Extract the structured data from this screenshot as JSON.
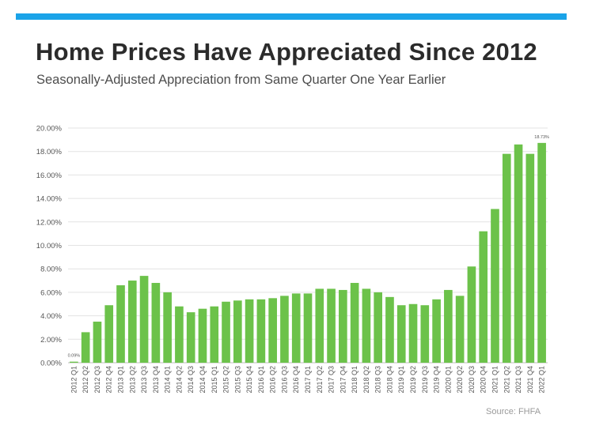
{
  "header": {
    "title": "Home Prices Have Appreciated Since 2012",
    "subtitle": "Seasonally-Adjusted Appreciation from Same Quarter One Year Earlier",
    "accent_color": "#1aa3e8"
  },
  "footer": {
    "source": "Source: FHFA"
  },
  "chart_data": {
    "type": "bar",
    "title": "",
    "xlabel": "",
    "ylabel": "",
    "ylim": [
      0,
      20
    ],
    "y_ticks": [
      "0.00%",
      "2.00%",
      "4.00%",
      "6.00%",
      "8.00%",
      "10.00%",
      "12.00%",
      "14.00%",
      "16.00%",
      "18.00%",
      "20.00%"
    ],
    "grid": true,
    "bar_color": "#6cc24a",
    "categories": [
      "2012 Q1",
      "2012 Q2",
      "2012 Q3",
      "2012 Q4",
      "2013 Q1",
      "2013 Q2",
      "2013 Q3",
      "2013 Q4",
      "2014 Q1",
      "2014 Q2",
      "2014 Q3",
      "2014 Q4",
      "2015 Q1",
      "2015 Q2",
      "2015 Q3",
      "2015 Q4",
      "2016 Q1",
      "2016 Q2",
      "2016 Q3",
      "2016 Q4",
      "2017 Q1",
      "2017 Q2",
      "2017 Q3",
      "2017 Q4",
      "2018 Q1",
      "2018 Q2",
      "2018 Q3",
      "2018 Q4",
      "2019 Q1",
      "2019 Q2",
      "2019 Q3",
      "2019 Q4",
      "2020 Q1",
      "2020 Q2",
      "2020 Q3",
      "2020 Q4",
      "2021 Q1",
      "2021 Q2",
      "2021 Q3",
      "2021 Q4",
      "2022 Q1"
    ],
    "values": [
      0.09,
      2.6,
      3.5,
      4.9,
      6.6,
      7.0,
      7.4,
      6.8,
      6.0,
      4.8,
      4.3,
      4.6,
      4.8,
      5.2,
      5.3,
      5.4,
      5.4,
      5.5,
      5.7,
      5.9,
      5.9,
      6.3,
      6.3,
      6.2,
      6.8,
      6.3,
      6.0,
      5.6,
      4.9,
      5.0,
      4.9,
      5.4,
      6.2,
      5.7,
      8.2,
      11.2,
      13.1,
      17.8,
      18.6,
      17.8,
      18.73
    ],
    "data_labels": [
      {
        "index": 0,
        "text": "0.09%"
      },
      {
        "index": 40,
        "text": "18.73%"
      }
    ]
  }
}
